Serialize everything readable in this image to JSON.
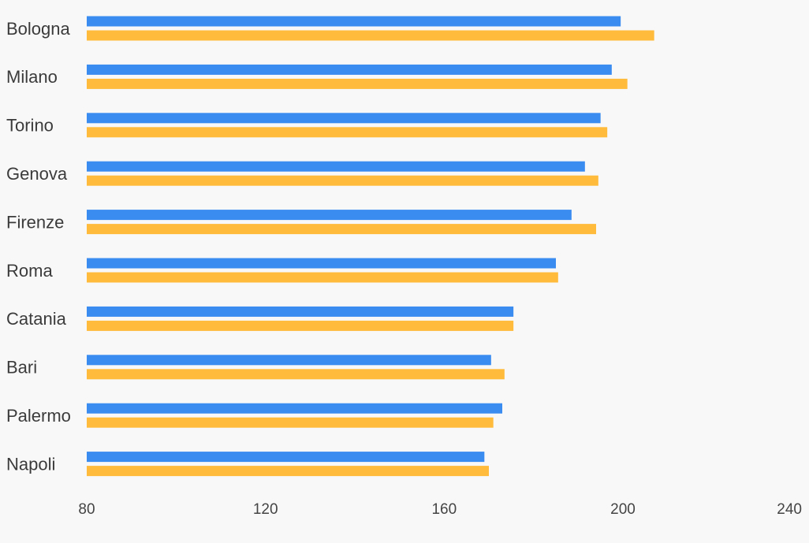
{
  "chart_data": {
    "type": "bar",
    "orientation": "horizontal",
    "categories": [
      "Bologna",
      "Milano",
      "Torino",
      "Genova",
      "Firenze",
      "Roma",
      "Catania",
      "Bari",
      "Palermo",
      "Napoli"
    ],
    "series": [
      {
        "color": "#3a8cf0",
        "values": [
          199.5,
          197.5,
          195,
          191.5,
          188.5,
          185,
          175.5,
          170.5,
          173,
          169
        ]
      },
      {
        "color": "#ffbb3b",
        "values": [
          207,
          201,
          196.5,
          194.5,
          194,
          185.5,
          175.5,
          173.5,
          171,
          170
        ]
      }
    ],
    "xlim": [
      80,
      240
    ],
    "xticks": [
      "80",
      "120",
      "160",
      "200",
      "240"
    ],
    "grid": false,
    "title": "",
    "xlabel": "",
    "ylabel": ""
  }
}
